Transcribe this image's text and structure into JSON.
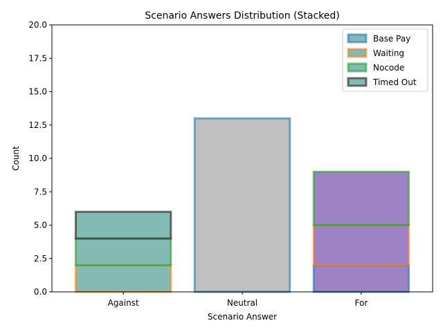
{
  "chart_data": {
    "type": "bar",
    "stacked": true,
    "title": "Scenario Answers Distribution (Stacked)",
    "xlabel": "Scenario Answer",
    "ylabel": "Count",
    "ylim": [
      0,
      20
    ],
    "yticks": [
      "0.0",
      "2.5",
      "5.0",
      "7.5",
      "10.0",
      "12.5",
      "15.0",
      "17.5",
      "20.0"
    ],
    "categories": [
      "Against",
      "Neutral",
      "For"
    ],
    "fill_colors": [
      "#83bbb4",
      "#c0c0c0",
      "#9f82c4"
    ],
    "series": [
      {
        "name": "Base Pay",
        "values": [
          0,
          13,
          2
        ],
        "edge_color": "#1f77b4"
      },
      {
        "name": "Waiting",
        "values": [
          2,
          0,
          3
        ],
        "edge_color": "#ff7f0e"
      },
      {
        "name": "Nocode",
        "values": [
          2,
          0,
          4
        ],
        "edge_color": "#2ca02c"
      },
      {
        "name": "Timed Out",
        "values": [
          2,
          0,
          0
        ],
        "edge_color": "#1a1a1a"
      }
    ],
    "legend": {
      "placement": "top-right",
      "swatch_color": "#83bbb4"
    },
    "grid": false
  }
}
